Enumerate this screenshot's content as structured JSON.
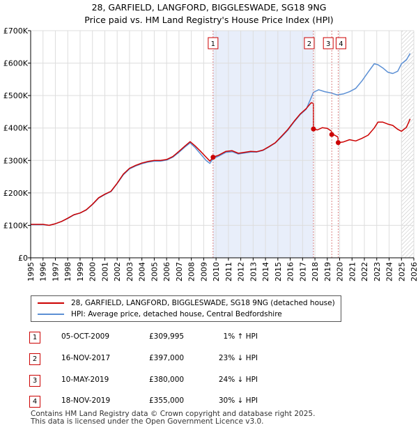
{
  "chart_data": {
    "type": "line",
    "title": "28, GARFIELD, LANGFORD, BIGGLESWADE, SG18 9NG",
    "subtitle": "Price paid vs. HM Land Registry's House Price Index (HPI)",
    "xlim": [
      1995,
      2026
    ],
    "ylim": [
      0,
      700000
    ],
    "x_ticks": [
      1995,
      1996,
      1997,
      1998,
      1999,
      2000,
      2001,
      2002,
      2003,
      2004,
      2005,
      2006,
      2007,
      2008,
      2009,
      2010,
      2011,
      2012,
      2013,
      2014,
      2015,
      2016,
      2017,
      2018,
      2019,
      2020,
      2021,
      2022,
      2023,
      2024,
      2025,
      2026
    ],
    "y_ticks": [
      {
        "value": 0,
        "label": "£0"
      },
      {
        "value": 100000,
        "label": "£100K"
      },
      {
        "value": 200000,
        "label": "£200K"
      },
      {
        "value": 300000,
        "label": "£300K"
      },
      {
        "value": 400000,
        "label": "£400K"
      },
      {
        "value": 500000,
        "label": "£500K"
      },
      {
        "value": 600000,
        "label": "£600K"
      },
      {
        "value": 700000,
        "label": "£700K"
      }
    ],
    "grid": true,
    "highlight_span": [
      2009.76,
      2017.88
    ],
    "future_hatch_from": 2025.0,
    "series": [
      {
        "name": "28, GARFIELD, LANGFORD, BIGGLESWADE, SG18 9NG (detached house)",
        "color": "#cc0000",
        "points": [
          [
            1995.0,
            103000
          ],
          [
            1996.0,
            103000
          ],
          [
            1996.5,
            100000
          ],
          [
            1997.0,
            105000
          ],
          [
            1997.5,
            112000
          ],
          [
            1998.0,
            122000
          ],
          [
            1998.5,
            133000
          ],
          [
            1999.0,
            138000
          ],
          [
            1999.5,
            148000
          ],
          [
            2000.0,
            165000
          ],
          [
            2000.5,
            185000
          ],
          [
            2001.0,
            196000
          ],
          [
            2001.5,
            205000
          ],
          [
            2002.0,
            230000
          ],
          [
            2002.5,
            258000
          ],
          [
            2003.0,
            276000
          ],
          [
            2003.5,
            285000
          ],
          [
            2004.0,
            292000
          ],
          [
            2004.5,
            297000
          ],
          [
            2005.0,
            300000
          ],
          [
            2005.5,
            300000
          ],
          [
            2006.0,
            303000
          ],
          [
            2006.5,
            312000
          ],
          [
            2007.0,
            328000
          ],
          [
            2007.5,
            345000
          ],
          [
            2007.9,
            358000
          ],
          [
            2008.3,
            345000
          ],
          [
            2008.7,
            330000
          ],
          [
            2009.2,
            310000
          ],
          [
            2009.5,
            298000
          ],
          [
            2009.76,
            309995
          ],
          [
            2010.2,
            316000
          ],
          [
            2010.8,
            328000
          ],
          [
            2011.3,
            330000
          ],
          [
            2011.8,
            322000
          ],
          [
            2012.3,
            325000
          ],
          [
            2012.8,
            328000
          ],
          [
            2013.3,
            327000
          ],
          [
            2013.8,
            332000
          ],
          [
            2014.3,
            343000
          ],
          [
            2014.8,
            355000
          ],
          [
            2015.3,
            375000
          ],
          [
            2015.8,
            395000
          ],
          [
            2016.3,
            420000
          ],
          [
            2016.8,
            443000
          ],
          [
            2017.3,
            460000
          ],
          [
            2017.7,
            478000
          ],
          [
            2017.87,
            476000
          ],
          [
            2017.88,
            397000
          ],
          [
            2018.2,
            394000
          ],
          [
            2018.6,
            401000
          ],
          [
            2019.0,
            399000
          ],
          [
            2019.35,
            390000
          ],
          [
            2019.36,
            380000
          ],
          [
            2019.6,
            378000
          ],
          [
            2019.87,
            372000
          ],
          [
            2019.88,
            355000
          ],
          [
            2020.3,
            357000
          ],
          [
            2020.8,
            364000
          ],
          [
            2021.3,
            360000
          ],
          [
            2021.8,
            368000
          ],
          [
            2022.3,
            378000
          ],
          [
            2022.8,
            400000
          ],
          [
            2023.1,
            418000
          ],
          [
            2023.5,
            418000
          ],
          [
            2023.9,
            412000
          ],
          [
            2024.3,
            408000
          ],
          [
            2024.7,
            396000
          ],
          [
            2025.0,
            390000
          ],
          [
            2025.4,
            402000
          ],
          [
            2025.7,
            428000
          ]
        ]
      },
      {
        "name": "HPI: Average price, detached house, Central Bedfordshire",
        "color": "#5b8fd4",
        "points": [
          [
            1995.0,
            102000
          ],
          [
            1996.0,
            102000
          ],
          [
            1996.5,
            100000
          ],
          [
            1997.0,
            105000
          ],
          [
            1997.5,
            112000
          ],
          [
            1998.0,
            121000
          ],
          [
            1998.5,
            132000
          ],
          [
            1999.0,
            138000
          ],
          [
            1999.5,
            147000
          ],
          [
            2000.0,
            164000
          ],
          [
            2000.5,
            184000
          ],
          [
            2001.0,
            195000
          ],
          [
            2001.5,
            204000
          ],
          [
            2002.0,
            229000
          ],
          [
            2002.5,
            256000
          ],
          [
            2003.0,
            274000
          ],
          [
            2003.5,
            283000
          ],
          [
            2004.0,
            290000
          ],
          [
            2004.5,
            295000
          ],
          [
            2005.0,
            298000
          ],
          [
            2005.5,
            298000
          ],
          [
            2006.0,
            301000
          ],
          [
            2006.5,
            310000
          ],
          [
            2007.0,
            325000
          ],
          [
            2007.5,
            342000
          ],
          [
            2007.9,
            354000
          ],
          [
            2008.3,
            340000
          ],
          [
            2008.7,
            322000
          ],
          [
            2009.2,
            300000
          ],
          [
            2009.5,
            291000
          ],
          [
            2009.76,
            306000
          ],
          [
            2010.2,
            313000
          ],
          [
            2010.8,
            325000
          ],
          [
            2011.3,
            327000
          ],
          [
            2011.8,
            320000
          ],
          [
            2012.3,
            323000
          ],
          [
            2012.8,
            326000
          ],
          [
            2013.3,
            326000
          ],
          [
            2013.8,
            331000
          ],
          [
            2014.3,
            342000
          ],
          [
            2014.8,
            354000
          ],
          [
            2015.3,
            373000
          ],
          [
            2015.8,
            393000
          ],
          [
            2016.3,
            418000
          ],
          [
            2016.8,
            441000
          ],
          [
            2017.3,
            458000
          ],
          [
            2017.88,
            510000
          ],
          [
            2018.3,
            518000
          ],
          [
            2018.8,
            512000
          ],
          [
            2019.3,
            508000
          ],
          [
            2019.8,
            502000
          ],
          [
            2020.3,
            505000
          ],
          [
            2020.8,
            512000
          ],
          [
            2021.3,
            522000
          ],
          [
            2021.8,
            545000
          ],
          [
            2022.3,
            572000
          ],
          [
            2022.8,
            598000
          ],
          [
            2023.1,
            595000
          ],
          [
            2023.5,
            585000
          ],
          [
            2023.9,
            572000
          ],
          [
            2024.3,
            568000
          ],
          [
            2024.7,
            575000
          ],
          [
            2025.0,
            598000
          ],
          [
            2025.4,
            610000
          ],
          [
            2025.7,
            630000
          ]
        ]
      }
    ],
    "sales": [
      {
        "label": "1",
        "x": 2009.76,
        "y": 309995
      },
      {
        "label": "2",
        "x": 2017.88,
        "y": 397000
      },
      {
        "label": "3",
        "x": 2019.36,
        "y": 380000
      },
      {
        "label": "4",
        "x": 2019.88,
        "y": 355000
      }
    ]
  },
  "legend": {
    "property": "28, GARFIELD, LANGFORD, BIGGLESWADE, SG18 9NG (detached house)",
    "hpi": "HPI: Average price, detached house, Central Bedfordshire"
  },
  "transactions": [
    {
      "num": "1",
      "date": "05-OCT-2009",
      "price": "£309,995",
      "hpi": "1% ↑ HPI"
    },
    {
      "num": "2",
      "date": "16-NOV-2017",
      "price": "£397,000",
      "hpi": "23% ↓ HPI"
    },
    {
      "num": "3",
      "date": "10-MAY-2019",
      "price": "£380,000",
      "hpi": "24% ↓ HPI"
    },
    {
      "num": "4",
      "date": "18-NOV-2019",
      "price": "£355,000",
      "hpi": "30% ↓ HPI"
    }
  ],
  "footer": {
    "line1": "Contains HM Land Registry data © Crown copyright and database right 2025.",
    "line2": "This data is licensed under the Open Government Licence v3.0."
  }
}
